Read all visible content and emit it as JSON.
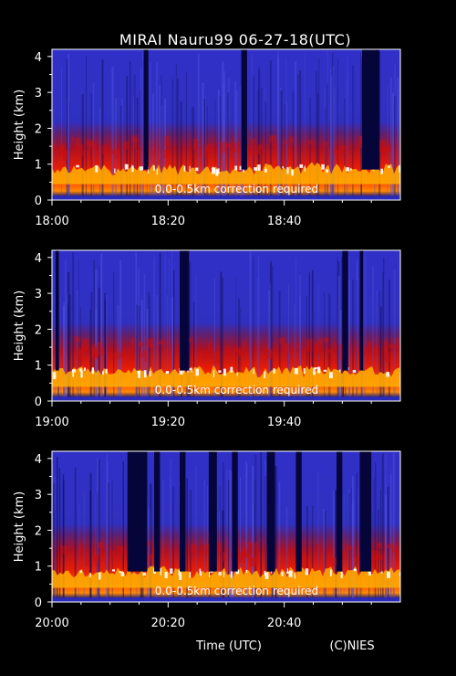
{
  "title": "MIRAI Nauru99 06-27-18(UTC)",
  "footer": {
    "xlabel": "Time (UTC)",
    "credit": "(C)NIES"
  },
  "colors": {
    "background": "#000000",
    "text": "#ffffff"
  },
  "chart_data": [
    {
      "type": "heatmap",
      "ylabel": "Height (km)",
      "ylim": [
        0,
        4.2
      ],
      "yticks": [
        "0",
        "1",
        "2",
        "3",
        "4"
      ],
      "xticks": [
        "18:00",
        "18:20",
        "18:40"
      ],
      "xlim_minutes": [
        0,
        60
      ],
      "annotation": "0.0-0.5km correction required",
      "cloud_base_km": 0.8,
      "layer_top_km": 1.8,
      "dark_gaps_minutes": [
        [
          15.8,
          16.6
        ],
        [
          32.6,
          33.6
        ],
        [
          53.4,
          56.4
        ]
      ]
    },
    {
      "type": "heatmap",
      "ylabel": "Height (km)",
      "ylim": [
        0,
        4.2
      ],
      "yticks": [
        "0",
        "1",
        "2",
        "3",
        "4"
      ],
      "xticks": [
        "19:00",
        "19:20",
        "19:40"
      ],
      "xlim_minutes": [
        0,
        60
      ],
      "annotation": "0.0-0.5km correction required",
      "cloud_base_km": 0.75,
      "layer_top_km": 1.8,
      "dark_gaps_minutes": [
        [
          0.6,
          1.2
        ],
        [
          22.0,
          23.6
        ],
        [
          50.0,
          51.0
        ],
        [
          53.0,
          53.6
        ]
      ]
    },
    {
      "type": "heatmap",
      "ylabel": "Height (km)",
      "ylim": [
        0,
        4.2
      ],
      "yticks": [
        "0",
        "1",
        "2",
        "3",
        "4"
      ],
      "xticks": [
        "20:00",
        "20:20",
        "20:40"
      ],
      "xlim_minutes": [
        0,
        60
      ],
      "annotation": "0.0-0.5km correction required",
      "cloud_base_km": 0.75,
      "layer_top_km": 1.7,
      "dark_gaps_minutes": [
        [
          13.0,
          16.4
        ],
        [
          17.6,
          18.6
        ],
        [
          22.0,
          23.0
        ],
        [
          27.0,
          28.4
        ],
        [
          31.0,
          32.0
        ],
        [
          37.0,
          38.4
        ],
        [
          42.0,
          43.0
        ],
        [
          49.0,
          50.0
        ],
        [
          53.0,
          55.0
        ]
      ]
    }
  ]
}
